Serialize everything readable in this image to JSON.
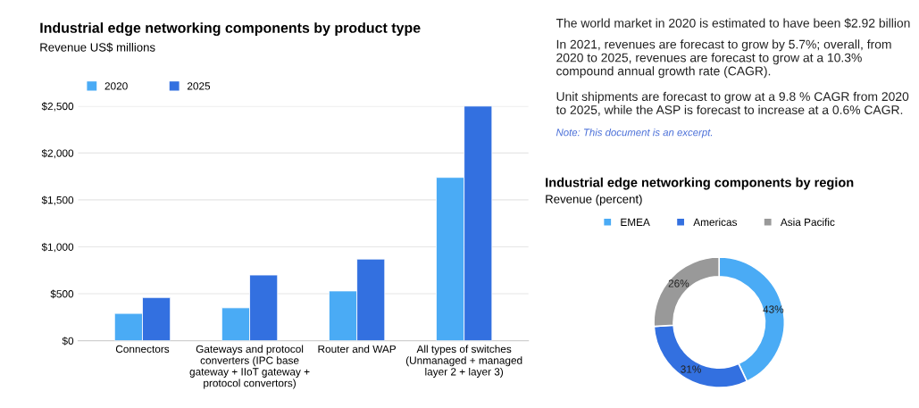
{
  "chart_data": [
    {
      "type": "bar",
      "title": "Industrial edge networking components by product type",
      "subtitle": "Revenue US$ millions",
      "categories": [
        "Connectors",
        "Gateways and protocol converters (IPC base gateway + IIoT gateway + protocol convertors)",
        "Router and WAP",
        "All types of switches (Unmanaged + managed layer 2 + layer 3)"
      ],
      "series": [
        {
          "name": "2020",
          "color": "#4aabf5",
          "values": [
            290,
            350,
            530,
            1740
          ]
        },
        {
          "name": "2025",
          "color": "#3370e0",
          "values": [
            460,
            700,
            870,
            2500
          ]
        }
      ],
      "ylim": [
        0,
        2500
      ],
      "yticks": [
        {
          "value": 0,
          "label": "$0"
        },
        {
          "value": 500,
          "label": "$500"
        },
        {
          "value": 1000,
          "label": "$1,000"
        },
        {
          "value": 1500,
          "label": "$1,500"
        },
        {
          "value": 2000,
          "label": "$2,000"
        },
        {
          "value": 2500,
          "label": "$2,500"
        }
      ],
      "grid": "y",
      "legend": "top left"
    },
    {
      "type": "other",
      "annotations": [
        "The world market in 2020 is estimated to have been $2.92 billion",
        "In 2021, revenues are forecast to grow by 5.7%; overall, from 2020 to 2025, revenues are forecast to grow at a 10.3% compound annual growth rate (CAGR).",
        "Unit shipments are forecast to grow at a 9.8 % CAGR from 2020 to 2025, while the ASP is forecast to increase at a 0.6% CAGR.",
        "Note: This document is an excerpt."
      ]
    },
    {
      "type": "donut",
      "title": "Industrial edge networking components by region",
      "subtitle": "Revenue (percent)",
      "categories": [
        "EMEA",
        "Americas",
        "Asia Pacific"
      ],
      "values": [
        43,
        31,
        26
      ],
      "colors": [
        "#4aabf5",
        "#3370e0",
        "#999999"
      ],
      "value_labels": [
        "43%",
        "31%",
        "26%"
      ],
      "legend": "top"
    }
  ]
}
